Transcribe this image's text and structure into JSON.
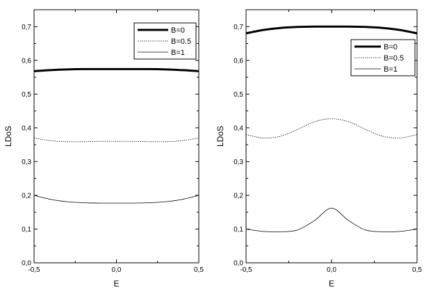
{
  "chart_data": [
    {
      "type": "line",
      "xlabel": "E",
      "ylabel": "LDoS",
      "xlim": [
        -0.5,
        0.5
      ],
      "ylim": [
        0.0,
        0.75
      ],
      "xticks": [
        -0.5,
        0.0,
        0.5
      ],
      "xtick_labels": [
        "-0,5",
        "0,0",
        "0,5"
      ],
      "yticks": [
        0.0,
        0.1,
        0.2,
        0.3,
        0.4,
        0.5,
        0.6,
        0.7
      ],
      "ytick_labels": [
        "0,0",
        "0,1",
        "0,2",
        "0,3",
        "0,4",
        "0,5",
        "0,6",
        "0,7"
      ],
      "legend_position": "top-right",
      "x": [
        -0.5,
        -0.4,
        -0.3,
        -0.2,
        -0.1,
        0.0,
        0.1,
        0.2,
        0.3,
        0.4,
        0.5
      ],
      "series": [
        {
          "name": "B=0",
          "style": "thick",
          "values": [
            0.568,
            0.571,
            0.573,
            0.574,
            0.574,
            0.574,
            0.574,
            0.574,
            0.573,
            0.571,
            0.568
          ]
        },
        {
          "name": "B=0.5",
          "style": "dotted",
          "values": [
            0.37,
            0.362,
            0.359,
            0.359,
            0.36,
            0.36,
            0.36,
            0.359,
            0.359,
            0.362,
            0.37
          ]
        },
        {
          "name": "B=1",
          "style": "thin",
          "values": [
            0.2,
            0.188,
            0.181,
            0.178,
            0.177,
            0.177,
            0.177,
            0.178,
            0.181,
            0.188,
            0.2
          ]
        }
      ]
    },
    {
      "type": "line",
      "xlabel": "E",
      "ylabel": "LDoS",
      "xlim": [
        -0.5,
        0.5
      ],
      "ylim": [
        0.0,
        0.75
      ],
      "xticks": [
        -0.5,
        0.0,
        0.5
      ],
      "xtick_labels": [
        "-0,5",
        "0,0",
        "0,5"
      ],
      "yticks": [
        0.0,
        0.1,
        0.2,
        0.3,
        0.4,
        0.5,
        0.6,
        0.7
      ],
      "ytick_labels": [
        "0,0",
        "0,1",
        "0,2",
        "0,3",
        "0,4",
        "0,5",
        "0,6",
        "0,7"
      ],
      "legend_position": "top-right",
      "x": [
        -0.5,
        -0.4,
        -0.3,
        -0.2,
        -0.1,
        0.0,
        0.1,
        0.2,
        0.3,
        0.4,
        0.5
      ],
      "series": [
        {
          "name": "B=0",
          "style": "thick",
          "values": [
            0.68,
            0.69,
            0.696,
            0.699,
            0.7,
            0.7,
            0.7,
            0.699,
            0.696,
            0.69,
            0.68
          ]
        },
        {
          "name": "B=0.5",
          "style": "dotted",
          "values": [
            0.38,
            0.37,
            0.375,
            0.395,
            0.418,
            0.427,
            0.418,
            0.395,
            0.375,
            0.37,
            0.38
          ]
        },
        {
          "name": "B=1",
          "style": "thin",
          "values": [
            0.1,
            0.093,
            0.092,
            0.097,
            0.125,
            0.162,
            0.125,
            0.097,
            0.092,
            0.093,
            0.1
          ]
        }
      ]
    }
  ]
}
